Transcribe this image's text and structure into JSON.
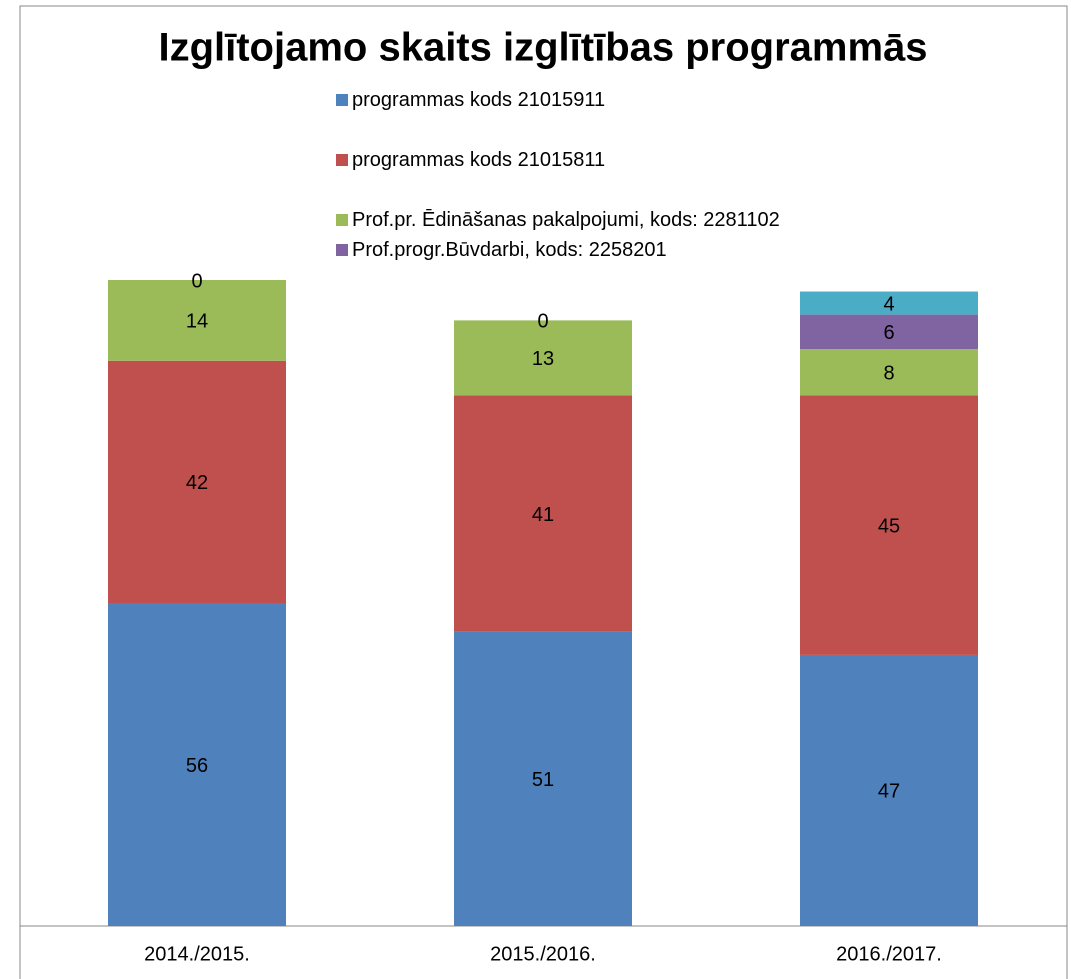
{
  "chart_data": {
    "type": "stacked_bar",
    "title": "Izglītojamo skaits izglītības programmās",
    "categories": [
      "2014./2015.",
      "2015./2016.",
      "2016./2017."
    ],
    "series": [
      {
        "name": "programmas kods 21015911",
        "color": "#4f81bd",
        "values": [
          56,
          51,
          47
        ]
      },
      {
        "name": "programmas kods 21015811",
        "color": "#c0504d",
        "values": [
          42,
          41,
          45
        ]
      },
      {
        "name": "Prof.pr. Ēdināšanas pakalpojumi, kods: 2281102",
        "color": "#9bbb59",
        "values": [
          14,
          13,
          8
        ]
      },
      {
        "name": "Prof.progr.Būvdarbi, kods: 2258201",
        "color": "#8064a2",
        "values": [
          0,
          0,
          6
        ]
      },
      {
        "color": "#4bacc6",
        "values": [
          null,
          null,
          4
        ]
      }
    ]
  }
}
